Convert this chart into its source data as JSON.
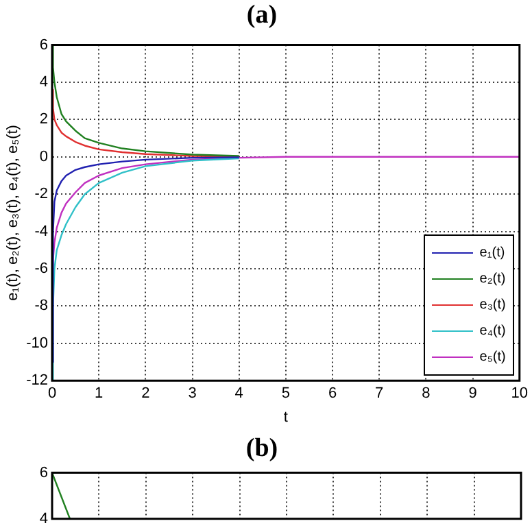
{
  "chart_data": [
    {
      "type": "line",
      "title": "(a)",
      "xlabel": "t",
      "ylabel": "e₁(t), e₂(t), e₃(t), e₄(t), e₅(t)",
      "xlim": [
        0,
        10
      ],
      "ylim": [
        -12,
        6
      ],
      "xticks": [
        0,
        1,
        2,
        3,
        4,
        5,
        6,
        7,
        8,
        9,
        10
      ],
      "yticks": [
        -12,
        -10,
        -8,
        -6,
        -4,
        -2,
        0,
        2,
        4,
        6
      ],
      "grid": true,
      "legend": "bottom right",
      "marker": "none",
      "line_style": "solid",
      "series": [
        {
          "name": "e₁(t)",
          "color": "#2020b0",
          "x": [
            0,
            0.02,
            0.05,
            0.1,
            0.2,
            0.3,
            0.5,
            0.7,
            1,
            1.5,
            2,
            3,
            4
          ],
          "values": [
            -11,
            -4,
            -2.4,
            -1.8,
            -1.3,
            -1,
            -0.7,
            -0.55,
            -0.4,
            -0.25,
            -0.15,
            -0.05,
            -0.02
          ]
        },
        {
          "name": "e₂(t)",
          "color": "#208020",
          "x": [
            0,
            0.02,
            0.05,
            0.1,
            0.2,
            0.3,
            0.5,
            0.7,
            1,
            1.5,
            2,
            3,
            4
          ],
          "values": [
            6,
            4.8,
            4,
            3.2,
            2.3,
            1.9,
            1.4,
            1,
            0.75,
            0.45,
            0.3,
            0.12,
            0.05
          ]
        },
        {
          "name": "e₃(t)",
          "color": "#e03030",
          "x": [
            0,
            0.02,
            0.05,
            0.1,
            0.2,
            0.3,
            0.5,
            0.7,
            1,
            1.5,
            2,
            3,
            4
          ],
          "values": [
            3.6,
            2.6,
            2,
            1.7,
            1.3,
            1.1,
            0.8,
            0.6,
            0.4,
            0.25,
            0.15,
            0.05,
            0.02
          ]
        },
        {
          "name": "e₄(t)",
          "color": "#30c0c8",
          "x": [
            0,
            0.02,
            0.05,
            0.1,
            0.2,
            0.3,
            0.5,
            0.7,
            1,
            1.5,
            2,
            3,
            4
          ],
          "values": [
            -12,
            -8,
            -6,
            -5,
            -4.2,
            -3.6,
            -2.7,
            -2,
            -1.4,
            -0.85,
            -0.5,
            -0.2,
            -0.08
          ]
        },
        {
          "name": "e₅(t)",
          "color": "#c030c0",
          "x": [
            0,
            0.02,
            0.05,
            0.1,
            0.2,
            0.3,
            0.5,
            0.7,
            1,
            1.5,
            2,
            3,
            4,
            5,
            10
          ],
          "values": [
            -7,
            -5.5,
            -4.6,
            -3.8,
            -3,
            -2.5,
            -1.9,
            -1.4,
            -1,
            -0.6,
            -0.4,
            -0.15,
            -0.05,
            0,
            0
          ]
        }
      ]
    },
    {
      "type": "line",
      "title": "(b)",
      "xlim": [
        0,
        10
      ],
      "ylim": [
        4,
        6
      ],
      "xticks": [
        {
          "value": 0,
          "label": null
        },
        {
          "value": 1,
          "label": null
        },
        {
          "value": 2,
          "label": null
        },
        {
          "value": 3,
          "label": null
        },
        {
          "value": 4,
          "label": null
        },
        {
          "value": 5,
          "label": null
        },
        {
          "value": 6,
          "label": null
        },
        {
          "value": 7,
          "label": null
        },
        {
          "value": 8,
          "label": null
        },
        {
          "value": 9,
          "label": null
        },
        {
          "value": 10,
          "label": null
        }
      ],
      "yticks": [
        4,
        6
      ],
      "grid": true,
      "tick_labels": "y",
      "marker": "none",
      "line_style": "solid",
      "series": [
        {
          "color": "#208020",
          "x": [
            0,
            0.38
          ],
          "values": [
            6,
            4
          ]
        }
      ]
    }
  ]
}
